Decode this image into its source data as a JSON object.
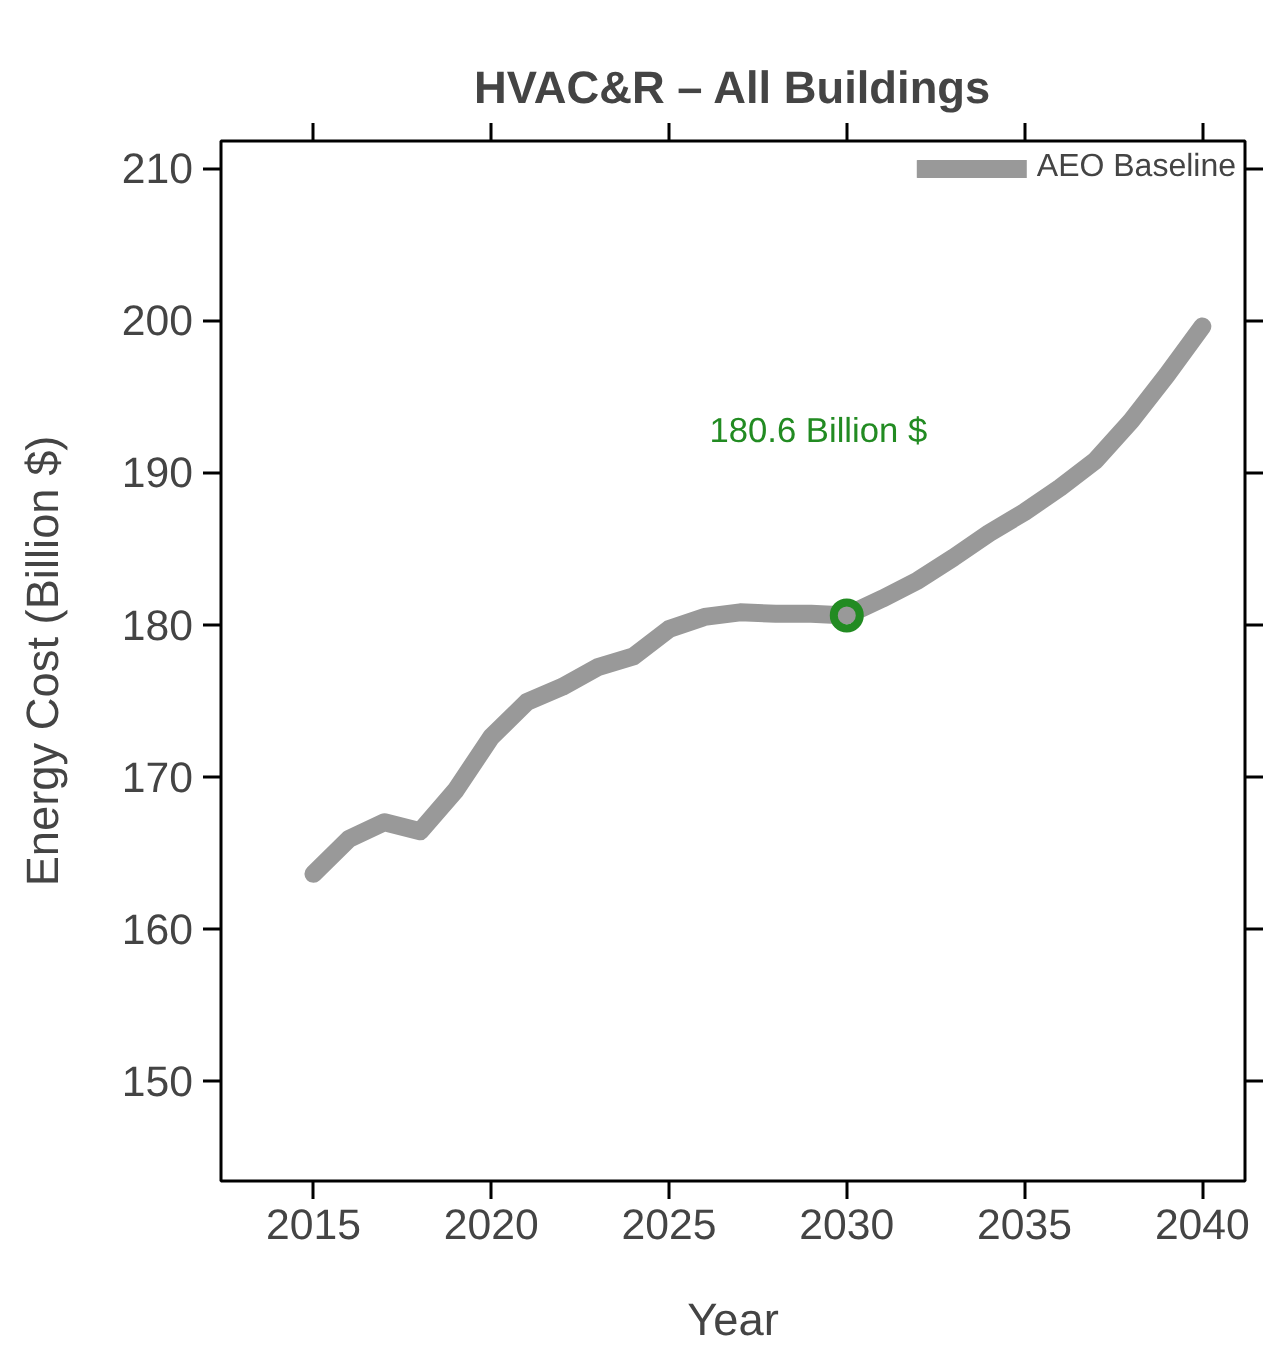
{
  "chart_data": {
    "type": "line",
    "title": "HVAC&R – All Buildings",
    "xlabel": "Year",
    "ylabel": "Energy Cost (Billion $)",
    "x": [
      2015,
      2016,
      2017,
      2018,
      2019,
      2020,
      2021,
      2022,
      2023,
      2024,
      2025,
      2026,
      2027,
      2028,
      2029,
      2030,
      2031,
      2032,
      2033,
      2034,
      2035,
      2036,
      2037,
      2038,
      2039,
      2040
    ],
    "series": [
      {
        "name": "AEO Baseline",
        "color": "#999999",
        "values": [
          163.6,
          165.9,
          167.0,
          166.4,
          169.1,
          172.6,
          174.9,
          175.9,
          177.2,
          177.9,
          179.7,
          180.5,
          180.8,
          180.7,
          180.7,
          180.6,
          181.7,
          182.9,
          184.4,
          186.0,
          187.4,
          189.0,
          190.8,
          193.4,
          196.4,
          199.6
        ]
      },
      {
        "type": "scatter",
        "x": [
          2030
        ],
        "color": "#228b22",
        "marker": "circle",
        "values": [
          180.6
        ]
      }
    ],
    "annotations": [
      "180.6 Billion $"
    ],
    "xlim": [
      2012.4,
      2041.2
    ],
    "ylim": [
      143.4,
      211.8
    ],
    "xticks": [
      2015,
      2020,
      2025,
      2030,
      2035,
      2040
    ],
    "yticks": [
      150,
      160,
      170,
      180,
      190,
      200,
      210
    ],
    "grid": false,
    "legend": "top right",
    "marker": "none",
    "line_style": "solid"
  }
}
